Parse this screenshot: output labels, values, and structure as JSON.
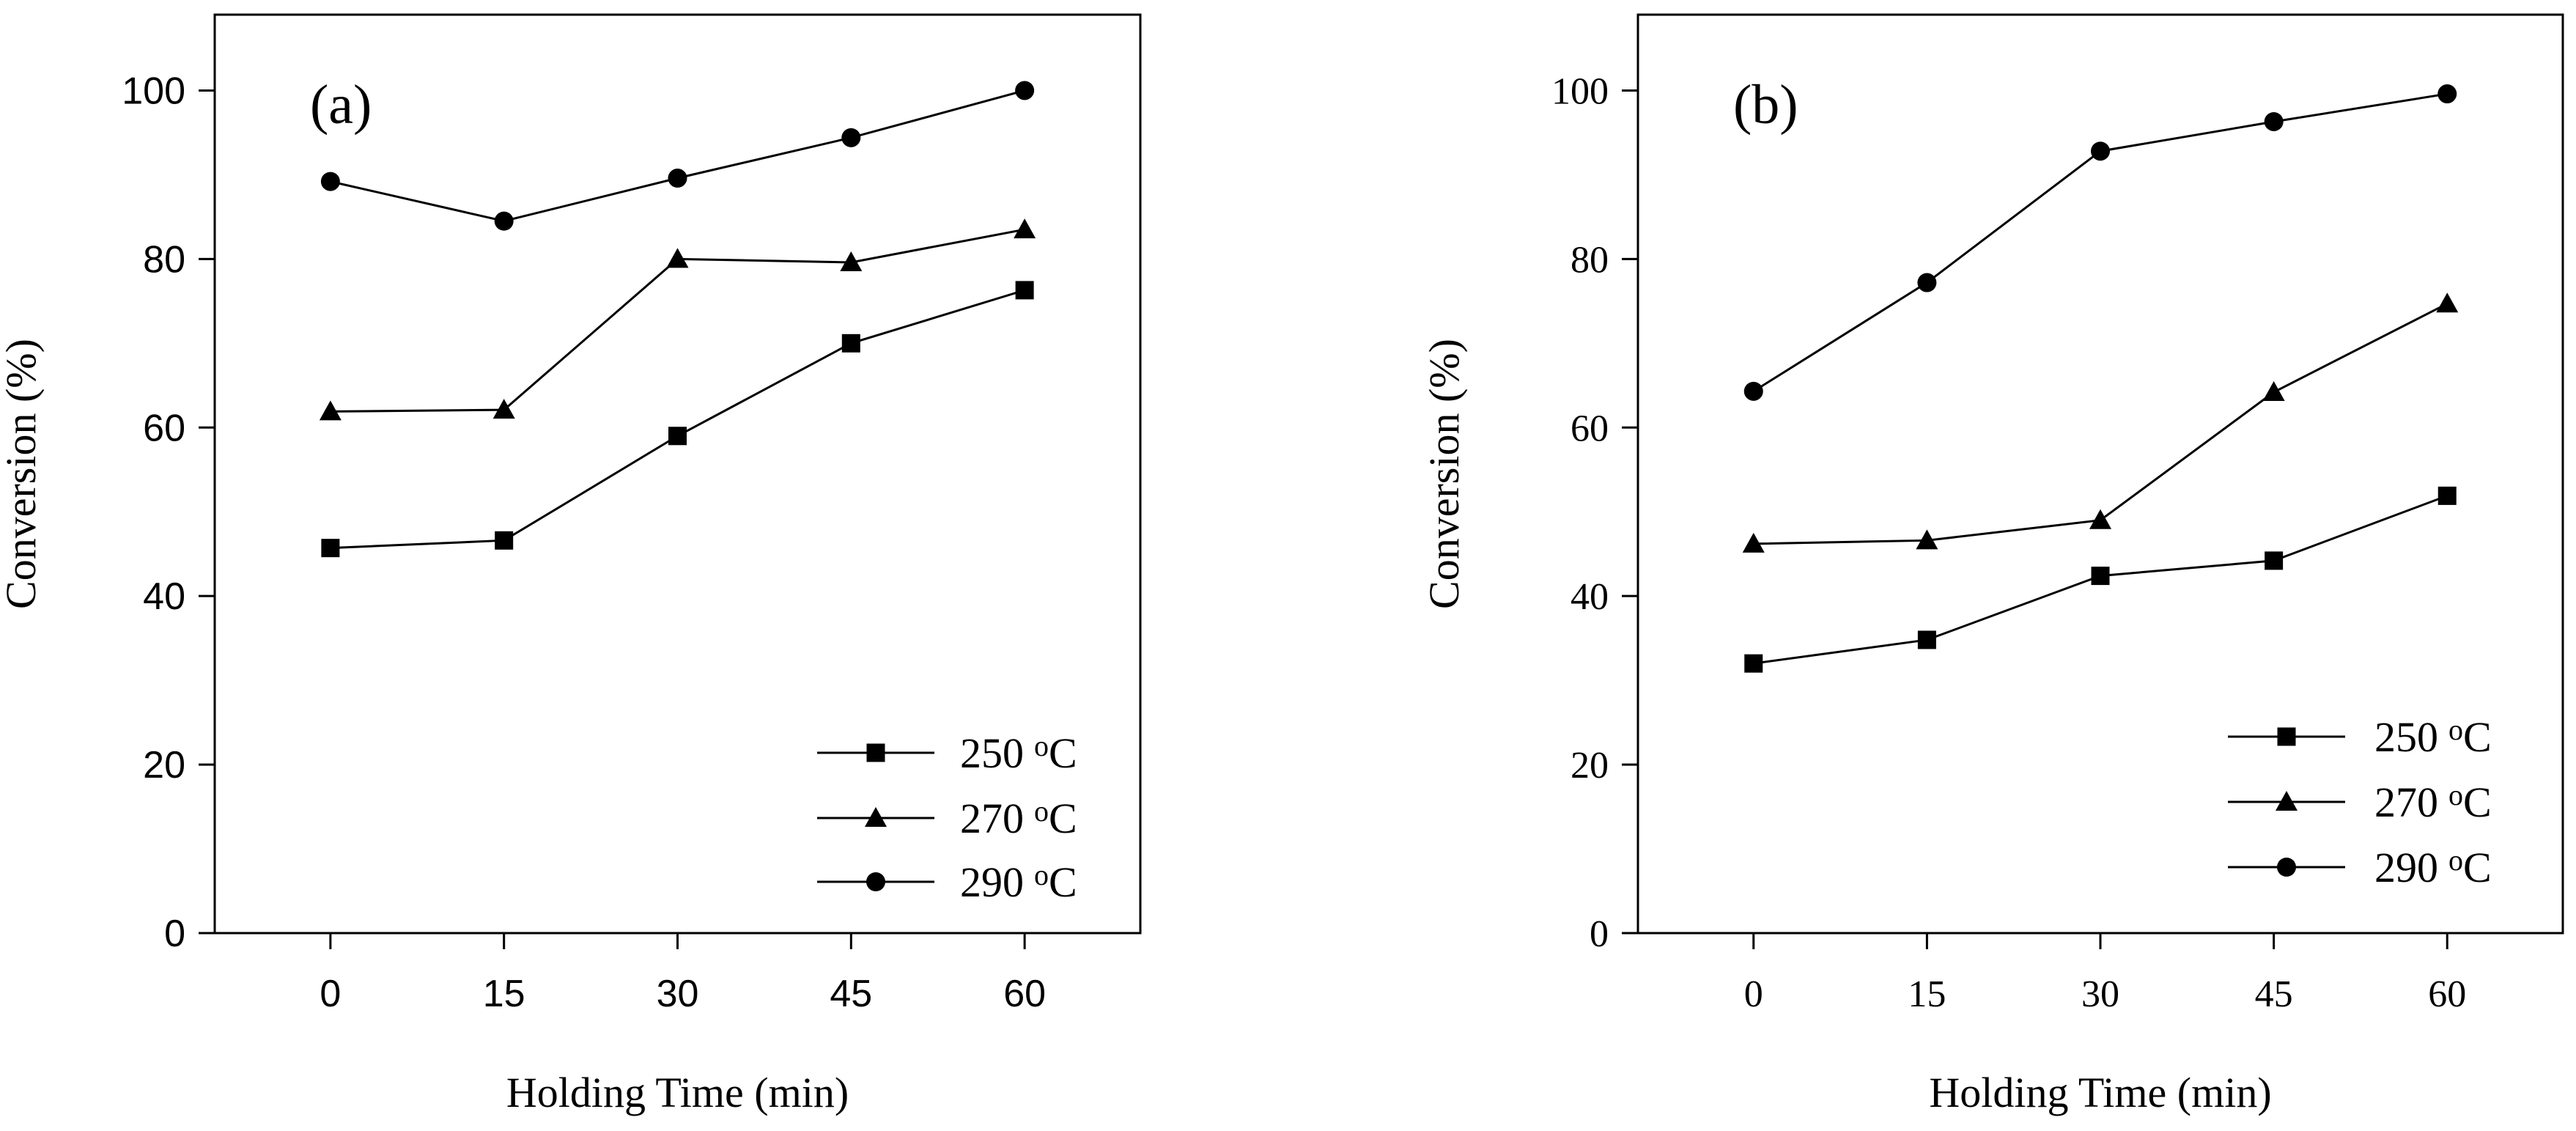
{
  "chart_data": [
    {
      "type": "line",
      "panel_label": "(a)",
      "xlabel": "Holding Time (min)",
      "ylabel": "Conversion (%)",
      "x": [
        0,
        15,
        30,
        45,
        60
      ],
      "x_ticks": [
        "0",
        "15",
        "30",
        "45",
        "60"
      ],
      "xlim": [
        -10,
        70
      ],
      "ylim": [
        0,
        109
      ],
      "y_ticks": [
        "0",
        "20",
        "40",
        "60",
        "80",
        "100"
      ],
      "y_tick_values": [
        0,
        20,
        40,
        60,
        80,
        100
      ],
      "tick_font": "sans",
      "legend_position": "bottom-right",
      "series": [
        {
          "name": "250",
          "unit_sup": "o",
          "unit": "C",
          "marker": "square",
          "values": [
            45.7,
            46.6,
            59.0,
            70.0,
            76.3
          ]
        },
        {
          "name": "270",
          "unit_sup": "o",
          "unit": "C",
          "marker": "triangle",
          "values": [
            61.9,
            62.1,
            80.0,
            79.6,
            83.5
          ]
        },
        {
          "name": "290",
          "unit_sup": "o",
          "unit": "C",
          "marker": "circle",
          "values": [
            89.2,
            84.5,
            89.6,
            94.4,
            100.0
          ]
        }
      ]
    },
    {
      "type": "line",
      "panel_label": "(b)",
      "xlabel": "Holding Time (min)",
      "ylabel": "Conversion (%)",
      "x": [
        0,
        15,
        30,
        45,
        60
      ],
      "x_ticks": [
        "0",
        "15",
        "30",
        "45",
        "60"
      ],
      "xlim": [
        -10,
        70
      ],
      "ylim": [
        0,
        109
      ],
      "y_ticks": [
        "0",
        "20",
        "40",
        "60",
        "80",
        "100"
      ],
      "y_tick_values": [
        0,
        20,
        40,
        60,
        80,
        100
      ],
      "tick_font": "serif",
      "legend_position": "bottom-right",
      "series": [
        {
          "name": "250",
          "unit_sup": "o",
          "unit": "C",
          "marker": "square",
          "values": [
            32.0,
            34.8,
            42.4,
            44.2,
            51.9
          ]
        },
        {
          "name": "270",
          "unit_sup": "o",
          "unit": "C",
          "marker": "triangle",
          "values": [
            46.2,
            46.6,
            49.0,
            64.2,
            74.7
          ]
        },
        {
          "name": "290",
          "unit_sup": "o",
          "unit": "C",
          "marker": "circle",
          "values": [
            64.3,
            77.2,
            92.8,
            96.3,
            99.6
          ]
        }
      ]
    }
  ]
}
